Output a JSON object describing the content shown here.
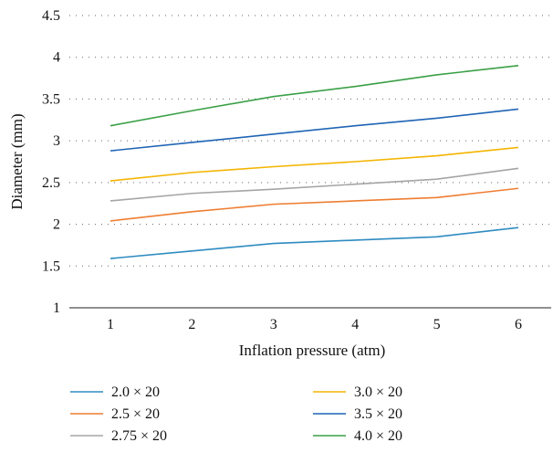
{
  "chart_data": {
    "type": "line",
    "x": [
      1,
      2,
      3,
      4,
      5,
      6
    ],
    "xlabel": "Inflation pressure (atm)",
    "ylabel": "Diameter (mm)",
    "ylim": [
      1,
      4.5
    ],
    "yticks": [
      "1",
      "1.5",
      "2",
      "2.5",
      "3",
      "3.5",
      "4",
      "4.5"
    ],
    "xticks": [
      "1",
      "2",
      "3",
      "4",
      "5",
      "6"
    ],
    "grid": "horizontal dotted",
    "legend_position": "bottom",
    "series": [
      {
        "name": "2.0 × 20",
        "color": "#2e8bc0",
        "values": [
          1.59,
          1.68,
          1.77,
          1.81,
          1.85,
          1.96
        ]
      },
      {
        "name": "2.5 × 20",
        "color": "#ee7d31",
        "values": [
          2.04,
          2.15,
          2.24,
          2.28,
          2.32,
          2.43
        ]
      },
      {
        "name": "2.75 × 20",
        "color": "#a5a5a5",
        "values": [
          2.28,
          2.37,
          2.42,
          2.48,
          2.54,
          2.67
        ]
      },
      {
        "name": "3.0 × 20",
        "color": "#f4b400",
        "values": [
          2.52,
          2.62,
          2.69,
          2.75,
          2.82,
          2.92
        ]
      },
      {
        "name": "3.5 × 20",
        "color": "#1f64b5",
        "values": [
          2.88,
          2.98,
          3.08,
          3.18,
          3.27,
          3.38
        ]
      },
      {
        "name": "4.0 × 20",
        "color": "#3aa047",
        "values": [
          3.18,
          3.36,
          3.53,
          3.65,
          3.79,
          3.9
        ]
      }
    ]
  }
}
